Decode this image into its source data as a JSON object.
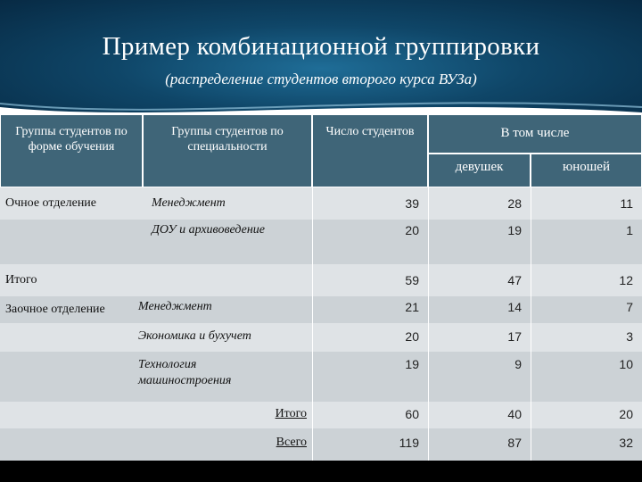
{
  "slide": {
    "title": "Пример комбинационной группировки",
    "subtitle": "(распределение студентов второго курса ВУЗа)"
  },
  "table": {
    "headers": {
      "form": "Группы студентов по форме обучения",
      "specialty": "Группы студентов по специальности",
      "count": "Число студентов",
      "including": "В том числе",
      "girls": "девушек",
      "boys": "юношей"
    },
    "day": {
      "label": "Очное отделение",
      "rows": [
        {
          "specialty": "Менеджмент",
          "count": "39",
          "girls": "28",
          "boys": "11"
        },
        {
          "specialty": "ДОУ и архивоведение",
          "count": "20",
          "girls": "19",
          "boys": "1"
        }
      ],
      "total": {
        "label": "Итого",
        "count": "59",
        "girls": "47",
        "boys": "12"
      }
    },
    "correspondence": {
      "label": "Заочное отделение",
      "rows": [
        {
          "specialty": "Менеджмент",
          "count": "21",
          "girls": "14",
          "boys": "7"
        },
        {
          "specialty": "Экономика и бухучет",
          "count": "20",
          "girls": "17",
          "boys": "3"
        },
        {
          "specialty": "Технология машиностроения",
          "count": "19",
          "girls": "9",
          "boys": "10"
        }
      ],
      "total": {
        "label": "Итого",
        "count": "60",
        "girls": "40",
        "boys": "20"
      }
    },
    "grand_total": {
      "label": "Всего",
      "count": "119",
      "girls": "87",
      "boys": "32"
    }
  },
  "colors": {
    "header_bg": "#0f4668",
    "table_header": "#3f6578",
    "row_light": "#dfe3e6",
    "row_dark": "#ccd2d6"
  }
}
